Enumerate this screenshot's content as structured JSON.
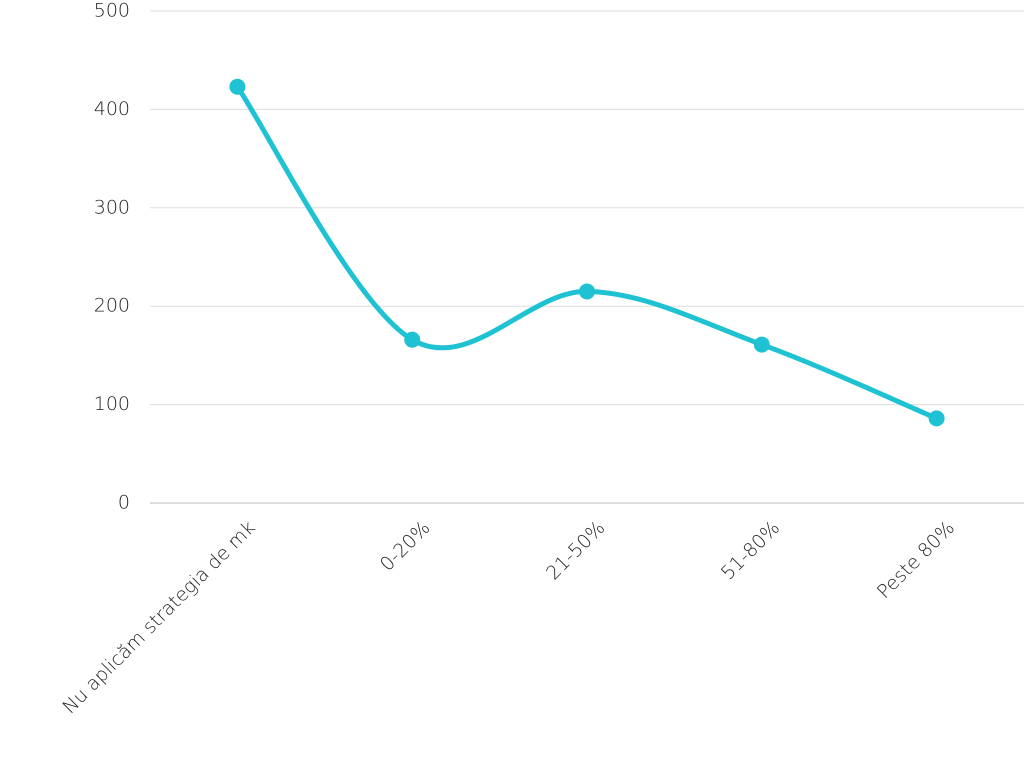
{
  "chart_data": {
    "type": "line",
    "categories": [
      "Nu aplicăm strategia de mk",
      "0-20%",
      "21-50%",
      "51-80%",
      "Peste 80%"
    ],
    "series": [
      {
        "color": "#1fc2d3",
        "values": [
          423,
          166,
          215,
          161,
          86
        ]
      }
    ],
    "ylim": [
      0,
      500
    ],
    "yticks": [
      0,
      100,
      200,
      300,
      400,
      500
    ],
    "grid": true,
    "smooth": true
  }
}
